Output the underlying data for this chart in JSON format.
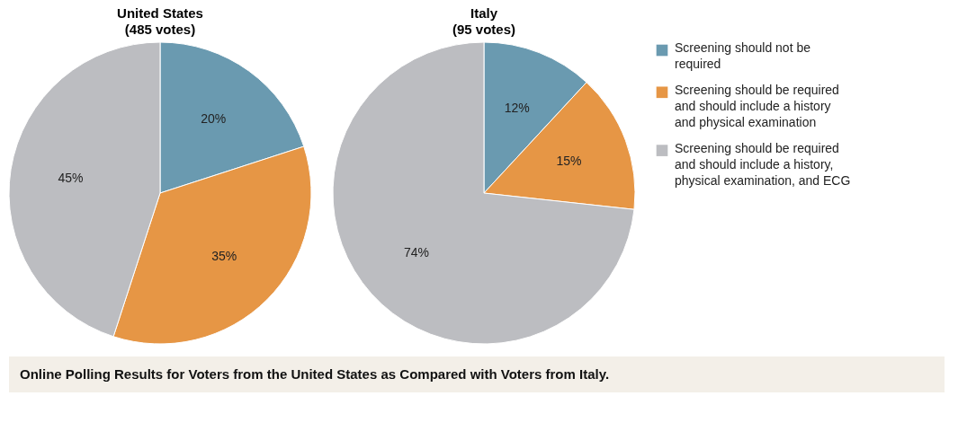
{
  "chart_data": [
    {
      "type": "pie",
      "title": "United States",
      "subtitle": "(485 votes)",
      "categories": [
        null,
        null,
        null
      ],
      "values": [
        20,
        35,
        45
      ],
      "value_labels": [
        "20%",
        "35%",
        "45%"
      ],
      "colors": [
        "#6a9ab0",
        "#e69645",
        "#bcbdc1"
      ],
      "legend": false
    },
    {
      "type": "pie",
      "title": "Italy",
      "subtitle": "(95 votes)",
      "categories": [
        "Screening should not be required",
        "Screening should be required and should include a history and physical examination",
        "Screening should be required and should include a history, physical examination, and ECG"
      ],
      "values": [
        12,
        15,
        74
      ],
      "value_labels": [
        "12%",
        "15%",
        "74%"
      ],
      "colors": [
        "#6a9ab0",
        "#e69645",
        "#bcbdc1"
      ],
      "legend": "right",
      "annotations": [
        "Online Polling Results for Voters from the United States as Compared with Voters from Italy."
      ]
    }
  ]
}
